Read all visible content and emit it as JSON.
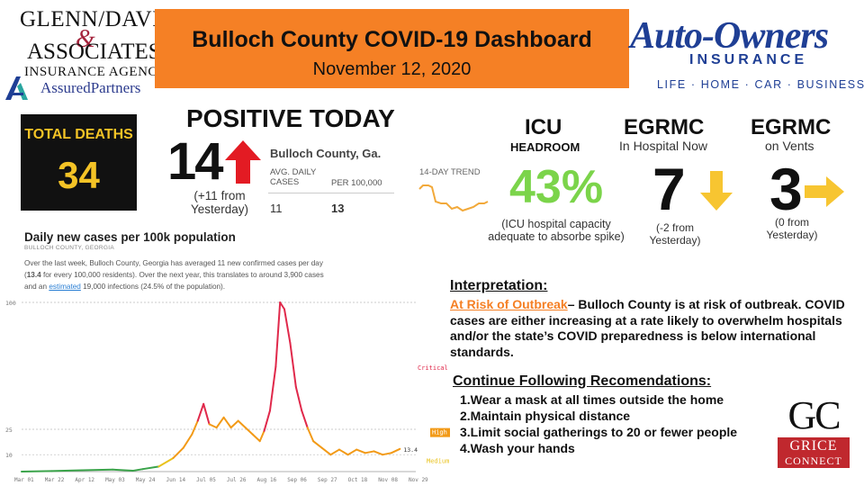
{
  "sponsor_left": {
    "line1": "GLENN/DAVIS",
    "amp": "&",
    "line2": "ASSOCIATES",
    "line3": "INSURANCE AGENCY",
    "line4": "AssuredPartners"
  },
  "header": {
    "title": "Bulloch County COVID-19 Dashboard",
    "date": "November 12, 2020",
    "banner_color": "#f58025"
  },
  "sponsor_right": {
    "name": "Auto-Owners",
    "sub": "INSURANCE",
    "tagline": "LIFE · HOME · CAR · BUSINESS",
    "color": "#1f3f95"
  },
  "total_deaths": {
    "label": "TOTAL DEATHS",
    "value": "34"
  },
  "positive_today": {
    "title": "POSITIVE TODAY",
    "value": "14",
    "change_note": "(+11 from Yesterday)",
    "arrow": "arrow-up-red",
    "county_label": "Bulloch County, Ga.",
    "avg_daily_label": "AVG. DAILY CASES",
    "per_100k_label": "PER 100,000",
    "avg_daily_value": "11",
    "per_100k_value": "13",
    "trend_label": "14-DAY TREND"
  },
  "icu": {
    "title": "ICU",
    "subtitle": "HEADROOM",
    "value": "43%",
    "note": "(ICU hospital capacity adequate to absorbe spike)",
    "color": "#7bd44a"
  },
  "egrmc_hospital": {
    "title": "EGRMC",
    "subtitle": "In Hospital Now",
    "value": "7",
    "note": "(-2 from Yesterday)",
    "arrow": "arrow-down-yellow"
  },
  "egrmc_vents": {
    "title": "EGRMC",
    "subtitle": "on Vents",
    "value": "3",
    "note": "(0 from Yesterday)",
    "arrow": "arrow-right-yellow"
  },
  "chart_panel": {
    "title": "Daily new cases per 100k population",
    "subtitle": "BULLOCH COUNTY, GEORGIA",
    "desc_1": "Over the last week, Bulloch County, Georgia has averaged 11 new confirmed cases per day (",
    "desc_bold": "13.4",
    "desc_2": " for every 100,000 residents). Over the next year, this translates to around 3,900 cases and an ",
    "desc_link": "estimated",
    "desc_3": " 19,000 infections (24.5% of the population)."
  },
  "chart_data": {
    "type": "line",
    "title": "Daily new cases per 100k population",
    "xlabel": "",
    "ylabel": "",
    "x_ticks": [
      "Mar 01",
      "Mar 22",
      "Apr 12",
      "May 03",
      "May 24",
      "Jun 14",
      "Jul 05",
      "Jul 26",
      "Aug 16",
      "Sep 06",
      "Sep 27",
      "Oct 18",
      "Nov 08",
      "Nov 29"
    ],
    "y_ticks": [
      10,
      25,
      100
    ],
    "ylim": [
      0,
      100
    ],
    "thresholds": [
      {
        "label": "Critical",
        "value": 75,
        "color": "#e0294b"
      },
      {
        "label": "High",
        "value": 25,
        "color": "#f29a17"
      },
      {
        "label": "Medium",
        "value": 10,
        "color": "#e9c21c"
      }
    ],
    "current_value": "13.4",
    "series": [
      {
        "values": [
          {
            "x": 0,
            "y": 0
          },
          {
            "x": 21,
            "y": 0.3
          },
          {
            "x": 42,
            "y": 0.8
          },
          {
            "x": 63,
            "y": 1.2
          },
          {
            "x": 77,
            "y": 0.5
          },
          {
            "x": 84,
            "y": 1.5
          },
          {
            "x": 95,
            "y": 3
          },
          {
            "x": 105,
            "y": 8
          },
          {
            "x": 112,
            "y": 14
          },
          {
            "x": 118,
            "y": 22
          },
          {
            "x": 122,
            "y": 30
          },
          {
            "x": 126,
            "y": 40
          },
          {
            "x": 130,
            "y": 28
          },
          {
            "x": 135,
            "y": 26
          },
          {
            "x": 140,
            "y": 32
          },
          {
            "x": 145,
            "y": 26
          },
          {
            "x": 150,
            "y": 30
          },
          {
            "x": 155,
            "y": 26
          },
          {
            "x": 160,
            "y": 22
          },
          {
            "x": 165,
            "y": 18
          },
          {
            "x": 168,
            "y": 24
          },
          {
            "x": 172,
            "y": 36
          },
          {
            "x": 176,
            "y": 62
          },
          {
            "x": 179,
            "y": 100
          },
          {
            "x": 182,
            "y": 96
          },
          {
            "x": 186,
            "y": 76
          },
          {
            "x": 190,
            "y": 50
          },
          {
            "x": 194,
            "y": 36
          },
          {
            "x": 198,
            "y": 26
          },
          {
            "x": 202,
            "y": 18
          },
          {
            "x": 208,
            "y": 14
          },
          {
            "x": 214,
            "y": 10
          },
          {
            "x": 220,
            "y": 13
          },
          {
            "x": 226,
            "y": 10
          },
          {
            "x": 232,
            "y": 13
          },
          {
            "x": 238,
            "y": 11
          },
          {
            "x": 244,
            "y": 12
          },
          {
            "x": 250,
            "y": 10
          },
          {
            "x": 256,
            "y": 11
          },
          {
            "x": 262,
            "y": 13.4
          }
        ]
      }
    ]
  },
  "interpretation": {
    "heading": "Interpretation:",
    "risk_label": "At Risk of Outbreak",
    "body": "– Bulloch County is at risk of outbreak. COVID cases are either increasing at a rate likely to overwhelm hospitals and/or the state’s COVID preparedness is below international standards.",
    "risk_color": "#f58025"
  },
  "recommendations": {
    "heading": "Continue Following Recomendations:",
    "items": [
      "1.Wear a mask at all times outside the home",
      "2.Maintain physical distance",
      "3.Limit social gatherings to 20 or fewer people",
      "4.Wash your hands"
    ]
  },
  "grice": {
    "letters": "GC",
    "line1": "GRICE",
    "line2": "CONNECT"
  }
}
